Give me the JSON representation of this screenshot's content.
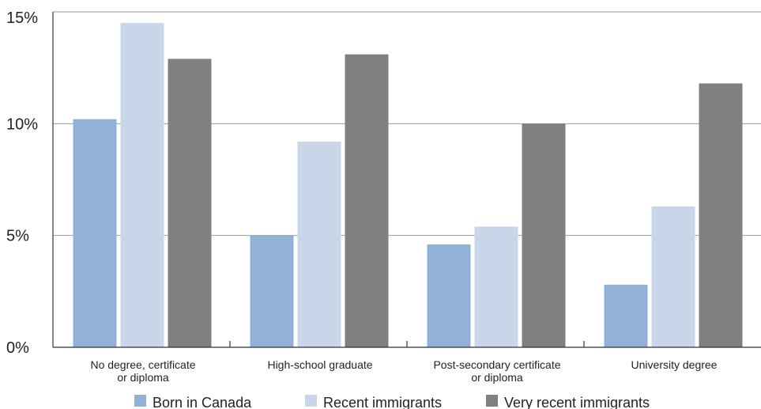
{
  "chart_data": {
    "type": "bar",
    "categories": [
      [
        "No degree, certificate",
        "or diploma"
      ],
      [
        "High-school graduate"
      ],
      [
        "Post-secondary certificate",
        "or diploma"
      ],
      [
        "University degree"
      ]
    ],
    "series": [
      {
        "name": "Born in Canada",
        "color": "#92b1d6",
        "values": [
          10.2,
          5.0,
          4.6,
          2.8
        ]
      },
      {
        "name": "Recent immigrants",
        "color": "#c8d6ea",
        "values": [
          14.5,
          9.2,
          5.4,
          6.3
        ]
      },
      {
        "name": "Very recent immigrants",
        "color": "#808080",
        "values": [
          12.9,
          13.1,
          10.0,
          11.8
        ]
      }
    ],
    "ylim": [
      0,
      15
    ],
    "yticks": [
      0,
      5,
      10,
      15
    ],
    "ytick_labels": [
      "0%",
      "5%",
      "10%",
      "15%"
    ],
    "grid": true,
    "legend_position": "bottom"
  }
}
